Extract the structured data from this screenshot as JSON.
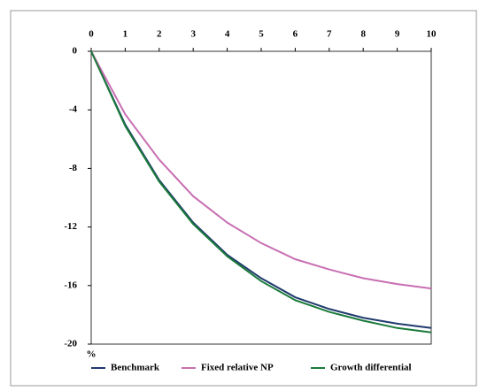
{
  "chart_data": {
    "type": "line",
    "y_label": "%",
    "x": [
      0,
      1,
      2,
      3,
      4,
      5,
      6,
      7,
      8,
      9,
      10
    ],
    "xlim": [
      0,
      10
    ],
    "xticks": [
      0,
      1,
      2,
      3,
      4,
      5,
      6,
      7,
      8,
      9,
      10
    ],
    "ylim": [
      -20,
      0
    ],
    "yticks": [
      0,
      -4,
      -8,
      -12,
      -16,
      -20
    ],
    "legend": "bottom",
    "series": [
      {
        "name": "Benchmark",
        "color": "#1f3a6e",
        "values": [
          0,
          -5.0,
          -8.8,
          -11.7,
          -13.9,
          -15.5,
          -16.8,
          -17.6,
          -18.2,
          -18.6,
          -18.9
        ]
      },
      {
        "name": "Fixed relative NP",
        "color": "#c86fb2",
        "values": [
          0,
          -4.3,
          -7.4,
          -9.9,
          -11.7,
          -13.1,
          -14.2,
          -14.9,
          -15.5,
          -15.9,
          -16.2
        ]
      },
      {
        "name": "Growth differential",
        "color": "#1a7a3a",
        "values": [
          0,
          -5.1,
          -8.9,
          -11.8,
          -14.0,
          -15.7,
          -17.0,
          -17.8,
          -18.4,
          -18.9,
          -19.2
        ]
      }
    ]
  }
}
